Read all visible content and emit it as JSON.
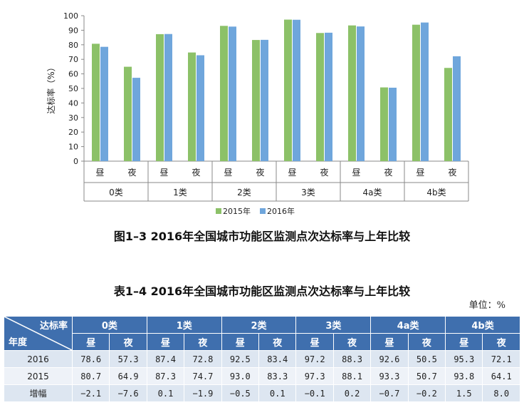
{
  "chart_data": {
    "type": "bar",
    "ylabel": "达标率（%）",
    "ylim": [
      0,
      100
    ],
    "ytick_step": 10,
    "groups": [
      {
        "label": "0类",
        "subcategories": [
          "昼",
          "夜"
        ]
      },
      {
        "label": "1类",
        "subcategories": [
          "昼",
          "夜"
        ]
      },
      {
        "label": "2类",
        "subcategories": [
          "昼",
          "夜"
        ]
      },
      {
        "label": "3类",
        "subcategories": [
          "昼",
          "夜"
        ]
      },
      {
        "label": "4a类",
        "subcategories": [
          "昼",
          "夜"
        ]
      },
      {
        "label": "4b类",
        "subcategories": [
          "昼",
          "夜"
        ]
      }
    ],
    "series": [
      {
        "name": "2015年",
        "color": "#8cc168",
        "values": [
          80.7,
          64.9,
          87.3,
          74.7,
          93.0,
          83.3,
          97.3,
          88.1,
          93.3,
          50.7,
          93.8,
          64.1
        ]
      },
      {
        "name": "2016年",
        "color": "#6fa6dc",
        "values": [
          78.6,
          57.3,
          87.4,
          72.8,
          92.5,
          83.4,
          97.2,
          88.3,
          92.6,
          50.5,
          95.3,
          72.1
        ]
      }
    ],
    "legend_position": "bottom",
    "grid": false
  },
  "figure_caption": "图1–3  2016年全国城市功能区监测点次达标率与上年比较",
  "table_caption": "表1–4  2016年全国城市功能区监测点次达标率与上年比较",
  "table_unit": "单位：%",
  "table": {
    "corner_top": "达标率",
    "corner_bottom": "年度",
    "groups": [
      "0类",
      "1类",
      "2类",
      "3类",
      "4a类",
      "4b类"
    ],
    "subheaders": [
      "昼",
      "夜"
    ],
    "rows": [
      {
        "label": "2016",
        "values": [
          "78.6",
          "57.3",
          "87.4",
          "72.8",
          "92.5",
          "83.4",
          "97.2",
          "88.3",
          "92.6",
          "50.5",
          "95.3",
          "72.1"
        ]
      },
      {
        "label": "2015",
        "values": [
          "80.7",
          "64.9",
          "87.3",
          "74.7",
          "93.0",
          "83.3",
          "97.3",
          "88.1",
          "93.3",
          "50.7",
          "93.8",
          "64.1"
        ]
      },
      {
        "label": "增幅",
        "values": [
          "−2.1",
          "−7.6",
          "0.1",
          "−1.9",
          "−0.5",
          "0.1",
          "−0.1",
          "0.2",
          "−0.7",
          "−0.2",
          "1.5",
          "8.0"
        ]
      }
    ]
  }
}
